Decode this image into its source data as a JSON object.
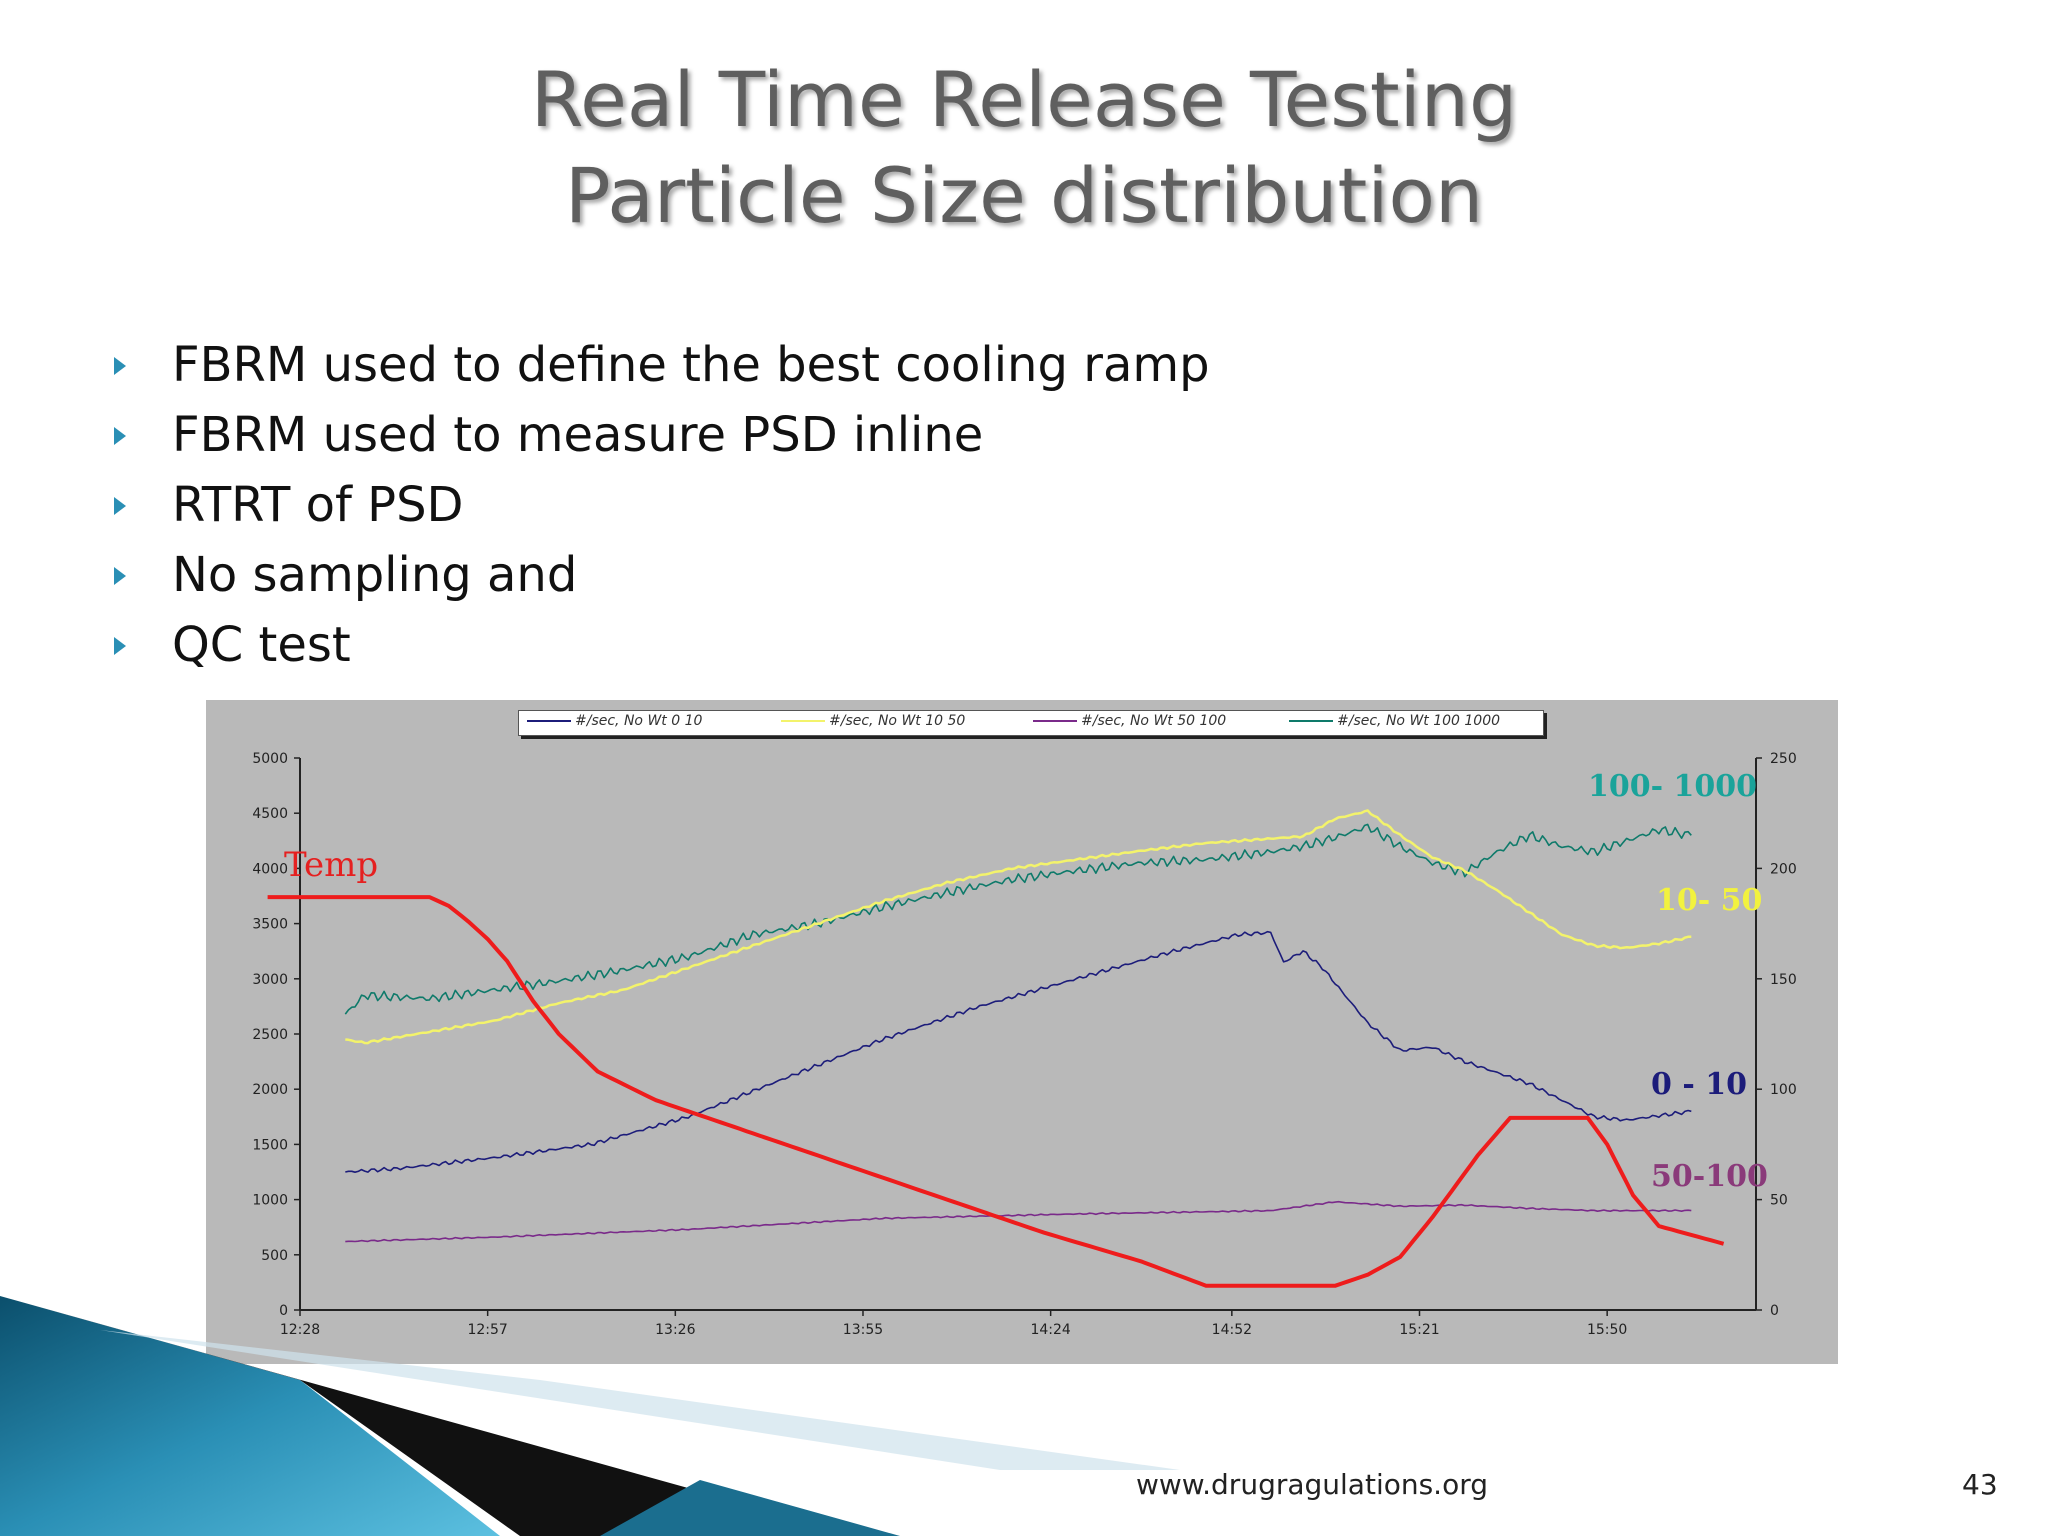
{
  "slide": {
    "title_line1": "Real Time Release Testing",
    "title_line2": "Particle Size distribution",
    "bullets": [
      "FBRM used to define the best cooling ramp",
      "FBRM used to measure PSD inline",
      "RTRT of PSD",
      "No sampling and",
      "QC test"
    ],
    "footer_url": "www.drugragulations.org",
    "page_number": "43",
    "accent_color": "#2a8fb5"
  },
  "chart_data": {
    "type": "line",
    "x_tick_labels": [
      "12:28",
      "12:57",
      "13:26",
      "13:55",
      "14:24",
      "14:52",
      "15:21",
      "15:50"
    ],
    "x_range_minutes": [
      0,
      225
    ],
    "ylim_left": [
      0,
      5000
    ],
    "yticks_left": [
      "5000",
      "4500",
      "4000",
      "3500",
      "3000",
      "2500",
      "2000",
      "1500",
      "1000",
      "500",
      "0"
    ],
    "ylim_right": [
      0,
      250
    ],
    "yticks_right": [
      "250",
      "200",
      "150",
      "100",
      "50",
      "0"
    ],
    "grid": false,
    "legend_position": "top",
    "legend": [
      {
        "label": "#/sec, No Wt 0 10",
        "color": "#1c1c7a"
      },
      {
        "label": "#/sec, No Wt 10 50",
        "color": "#f3f36b"
      },
      {
        "label": "#/sec, No Wt 50 100",
        "color": "#7a2a8a"
      },
      {
        "label": "#/sec, No Wt 100 1000",
        "color": "#0e7a6a"
      }
    ],
    "series": [
      {
        "name": "100-1000",
        "label": "100- 1000",
        "label_color": "#1aa39a",
        "color": "#0e7a6a",
        "axis": "left",
        "x": [
          7,
          10,
          20,
          30,
          40,
          50,
          60,
          70,
          80,
          90,
          100,
          110,
          120,
          130,
          140,
          150,
          155,
          160,
          165,
          170,
          175,
          180,
          185,
          190,
          195,
          200,
          205,
          210,
          215
        ],
        "y": [
          2680,
          2850,
          2820,
          2900,
          2980,
          3080,
          3200,
          3400,
          3500,
          3650,
          3780,
          3900,
          3980,
          4050,
          4080,
          4150,
          4200,
          4280,
          4380,
          4200,
          4050,
          3960,
          4150,
          4300,
          4200,
          4150,
          4250,
          4350,
          4300
        ]
      },
      {
        "name": "10-50",
        "label": "10- 50",
        "label_color": "#f2f23e",
        "color": "#f3f36b",
        "axis": "left",
        "x": [
          7,
          10,
          20,
          30,
          40,
          50,
          60,
          70,
          80,
          90,
          100,
          110,
          120,
          130,
          140,
          150,
          155,
          160,
          165,
          170,
          175,
          180,
          185,
          190,
          195,
          200,
          205,
          210,
          215
        ],
        "y": [
          2450,
          2420,
          2520,
          2620,
          2780,
          2900,
          3100,
          3300,
          3500,
          3700,
          3870,
          4000,
          4080,
          4160,
          4230,
          4270,
          4290,
          4450,
          4520,
          4300,
          4100,
          3980,
          3800,
          3600,
          3400,
          3300,
          3280,
          3320,
          3380
        ]
      },
      {
        "name": "0-10",
        "label": "0 - 10",
        "label_color": "#1c1c7a",
        "color": "#1c1c7a",
        "axis": "left",
        "x": [
          7,
          15,
          30,
          45,
          60,
          75,
          90,
          105,
          120,
          135,
          145,
          150,
          152,
          155,
          158,
          165,
          170,
          175,
          180,
          190,
          200,
          205,
          215
        ],
        "y": [
          1250,
          1280,
          1380,
          1500,
          1750,
          2100,
          2450,
          2750,
          3000,
          3250,
          3400,
          3420,
          3150,
          3250,
          3100,
          2600,
          2350,
          2380,
          2250,
          2050,
          1750,
          1720,
          1800
        ]
      },
      {
        "name": "50-100",
        "label": "50-100",
        "label_color": "#8a3a7a",
        "color": "#7a2a8a",
        "axis": "left",
        "x": [
          7,
          30,
          60,
          90,
          120,
          150,
          160,
          170,
          180,
          190,
          200,
          215
        ],
        "y": [
          620,
          660,
          730,
          830,
          870,
          900,
          980,
          940,
          950,
          920,
          900,
          900
        ]
      },
      {
        "name": "Temp",
        "label": "Temp",
        "label_color": "#e52020",
        "color": "#ee1c1c",
        "axis": "right",
        "x": [
          -5,
          20,
          23,
          26,
          29,
          32,
          36,
          40,
          46,
          55,
          70,
          85,
          100,
          115,
          130,
          140,
          150,
          155,
          160,
          165,
          170,
          175,
          177,
          182,
          187,
          190,
          193,
          196,
          199,
          202,
          206,
          210,
          220
        ],
        "y": [
          187,
          187,
          183,
          176,
          168,
          158,
          140,
          125,
          108,
          95,
          80,
          65,
          50,
          35,
          22,
          11,
          11,
          11,
          11,
          16,
          24,
          42,
          50,
          70,
          87,
          87,
          87,
          87,
          87,
          75,
          52,
          38,
          30
        ]
      }
    ]
  }
}
